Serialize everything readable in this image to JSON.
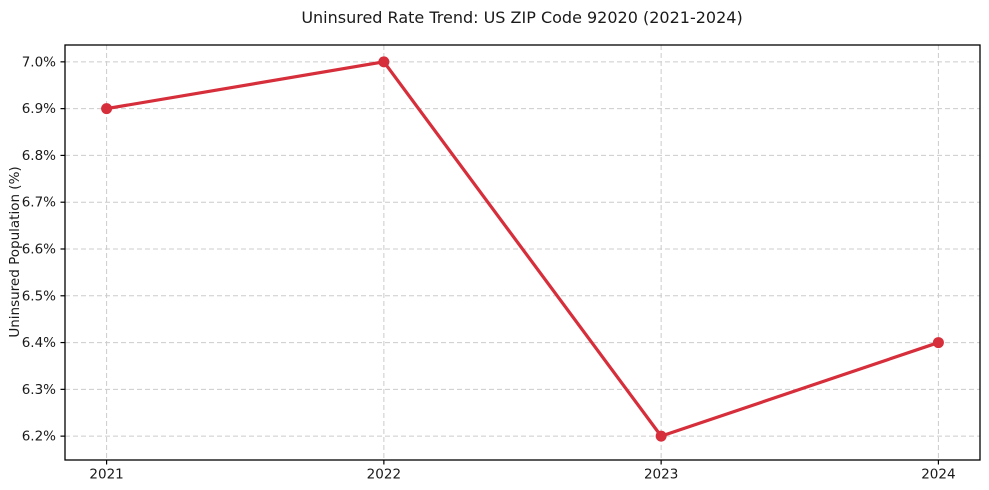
{
  "figure": {
    "background_color": "#ffffff"
  },
  "chart_data": {
    "type": "line",
    "title": "Uninsured Rate Trend: US ZIP Code 92020 (2021-2024)",
    "xlabel": "",
    "ylabel": "Uninsured Population (%)",
    "x": [
      2021,
      2022,
      2023,
      2024
    ],
    "series": [
      {
        "name": "Uninsured Population (%)",
        "values": [
          6.9,
          7.0,
          6.2,
          6.4
        ],
        "color": "#d62e3a",
        "marker": "circle",
        "line_width": 3.2,
        "marker_radius": 5.5
      }
    ],
    "xticks": {
      "values": [
        2021,
        2022,
        2023,
        2024
      ],
      "labels": [
        "2021",
        "2022",
        "2023",
        "2024"
      ]
    },
    "yticks": {
      "values": [
        6.2,
        6.3,
        6.4,
        6.5,
        6.6,
        6.7,
        6.8,
        6.9,
        7.0
      ],
      "labels": [
        "6.2%",
        "6.3%",
        "6.4%",
        "6.5%",
        "6.6%",
        "6.7%",
        "6.8%",
        "6.9%",
        "7.0%"
      ]
    },
    "xlim": [
      2020.85,
      2024.15
    ],
    "ylim": [
      6.149,
      7.036
    ],
    "grid": true,
    "grid_style": "dashed",
    "grid_color": "#cccccc",
    "spine_color": "#000000",
    "tick_color": "#000000",
    "legend_position": "none"
  }
}
